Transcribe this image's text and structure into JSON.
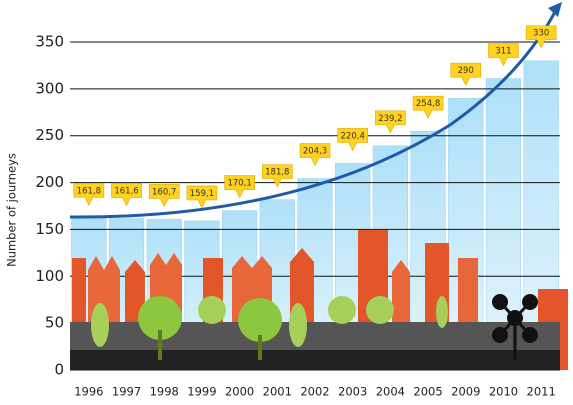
{
  "chart_data": {
    "type": "bar",
    "y_label": "Number of journeys",
    "categories": [
      "1996",
      "1997",
      "1998",
      "1999",
      "2000",
      "2001",
      "2002",
      "2003",
      "2004",
      "2005",
      "2009",
      "2010",
      "2011"
    ],
    "values": [
      161.8,
      161.6,
      160.7,
      159.1,
      170.1,
      181.8,
      204.3,
      220.4,
      239.2,
      254.8,
      290,
      311,
      330
    ],
    "value_labels": [
      "161,8",
      "161,6",
      "160,7",
      "159,1",
      "170,1",
      "181,8",
      "204,3",
      "220,4",
      "239,2",
      "254,8",
      "290",
      "311",
      "330"
    ],
    "color": "#8fd0f3",
    "ylim": [
      0,
      350
    ],
    "yticks": [
      0,
      50,
      100,
      150,
      200,
      250,
      300,
      350
    ],
    "grid": true
  }
}
